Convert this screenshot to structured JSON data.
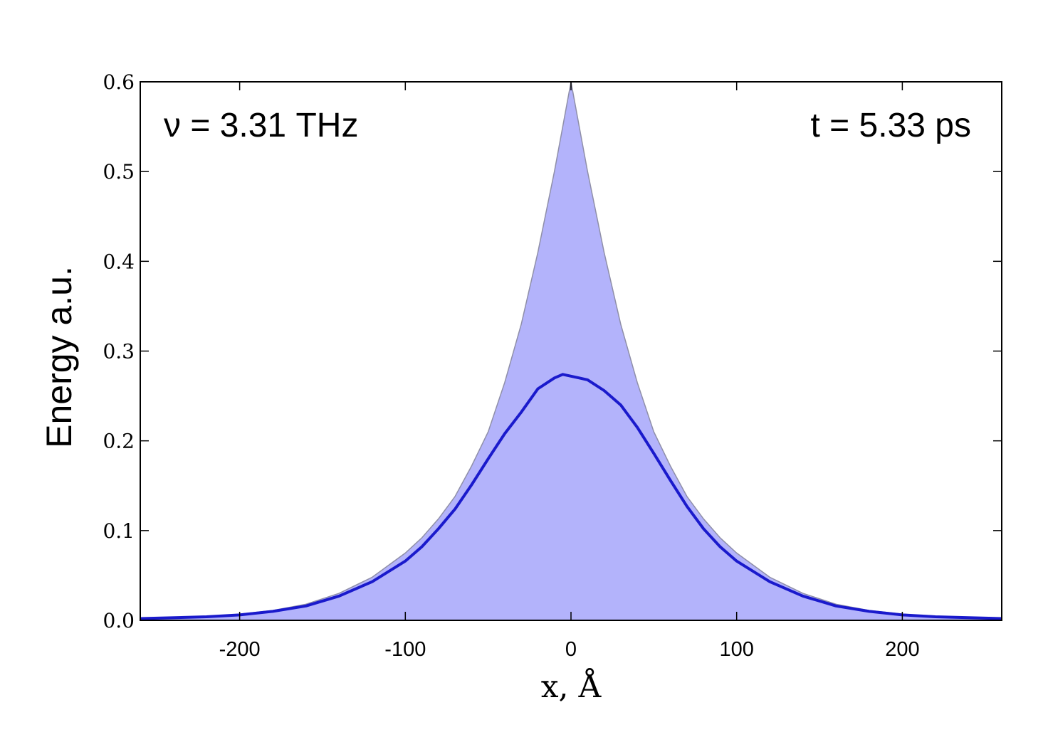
{
  "chart_data": {
    "type": "area",
    "title": "",
    "xlabel": "x, Å",
    "ylabel": "Energy a.u.",
    "xlim": [
      -260,
      260
    ],
    "ylim": [
      0,
      0.6
    ],
    "xticks": [
      -200,
      -100,
      0,
      100,
      200
    ],
    "xtick_labels": [
      "-200",
      "-100",
      "0",
      "100",
      "200"
    ],
    "yticks": [
      0.0,
      0.1,
      0.2,
      0.3,
      0.4,
      0.5,
      0.6
    ],
    "ytick_labels": [
      "0.0",
      "0.1",
      "0.2",
      "0.3",
      "0.4",
      "0.5",
      "0.6"
    ],
    "grid": false,
    "annotations": [
      {
        "text": "ν = 3.31 THz",
        "position": "top-left"
      },
      {
        "text": "t = 5.33 ps",
        "position": "top-right"
      }
    ],
    "colors": {
      "fill": "#b3b3fb",
      "fill_edge": "#8f8fa8",
      "line": "#1a1acc"
    },
    "series": [
      {
        "role": "filled-envelope",
        "x": [
          -260,
          -220,
          -200,
          -180,
          -160,
          -140,
          -120,
          -100,
          -90,
          -80,
          -70,
          -60,
          -50,
          -40,
          -30,
          -20,
          -15,
          -10,
          -5,
          0,
          5,
          10,
          15,
          20,
          30,
          40,
          50,
          60,
          70,
          80,
          90,
          100,
          120,
          140,
          160,
          180,
          200,
          220,
          260
        ],
        "y": [
          0.002,
          0.004,
          0.007,
          0.011,
          0.018,
          0.03,
          0.048,
          0.075,
          0.092,
          0.113,
          0.138,
          0.172,
          0.21,
          0.265,
          0.33,
          0.41,
          0.455,
          0.5,
          0.55,
          0.6,
          0.55,
          0.5,
          0.455,
          0.41,
          0.33,
          0.265,
          0.21,
          0.172,
          0.138,
          0.113,
          0.092,
          0.075,
          0.048,
          0.03,
          0.018,
          0.011,
          0.007,
          0.004,
          0.002
        ]
      },
      {
        "role": "line",
        "x": [
          -260,
          -220,
          -200,
          -180,
          -160,
          -140,
          -120,
          -100,
          -90,
          -80,
          -70,
          -60,
          -50,
          -40,
          -30,
          -20,
          -10,
          -5,
          0,
          5,
          10,
          20,
          30,
          40,
          50,
          60,
          70,
          80,
          90,
          100,
          120,
          140,
          160,
          180,
          200,
          220,
          260
        ],
        "y": [
          0.002,
          0.004,
          0.006,
          0.01,
          0.016,
          0.027,
          0.043,
          0.066,
          0.082,
          0.102,
          0.124,
          0.151,
          0.18,
          0.208,
          0.232,
          0.258,
          0.27,
          0.274,
          0.272,
          0.27,
          0.268,
          0.256,
          0.24,
          0.215,
          0.186,
          0.156,
          0.127,
          0.102,
          0.082,
          0.066,
          0.043,
          0.027,
          0.016,
          0.01,
          0.006,
          0.004,
          0.002
        ]
      }
    ]
  }
}
